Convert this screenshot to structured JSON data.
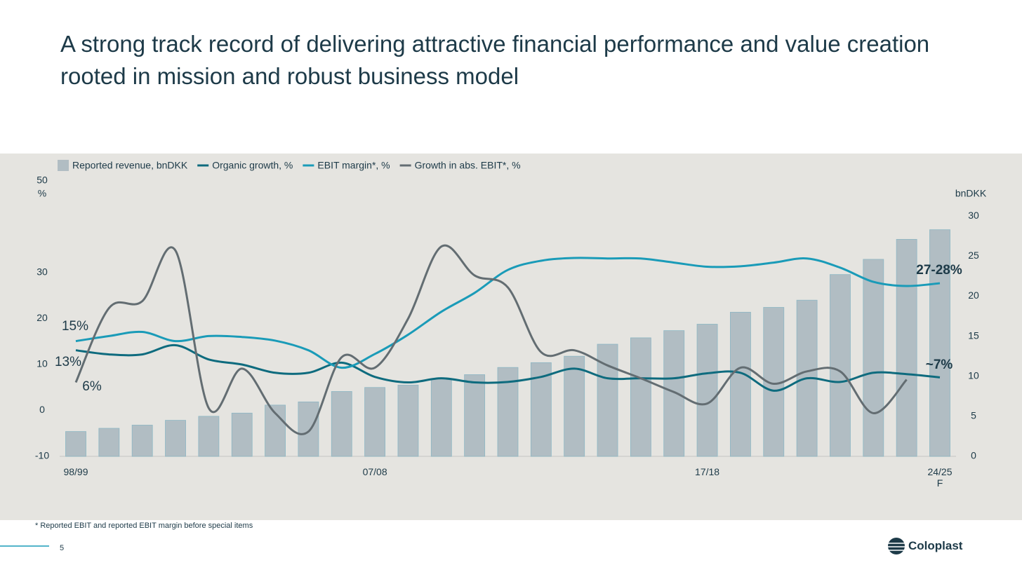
{
  "header": {
    "title": "A strong track record of delivering attractive financial performance and value creation rooted in mission and robust business model"
  },
  "chart_data": {
    "type": "combo",
    "categories": [
      "98/99",
      null,
      null,
      null,
      null,
      null,
      null,
      null,
      null,
      "07/08",
      null,
      null,
      null,
      null,
      null,
      null,
      null,
      null,
      null,
      "17/18",
      null,
      null,
      null,
      null,
      null,
      null,
      "24/25 F"
    ],
    "ylabel": "%",
    "y2label": "bnDKK",
    "ylim": [
      -10,
      50
    ],
    "yticks": [
      -10,
      0,
      10,
      20,
      30,
      50
    ],
    "y2lim": [
      0,
      34.4
    ],
    "y2ticks": [
      0,
      5,
      10,
      15,
      20,
      25,
      30
    ],
    "series": [
      {
        "name": "Reported revenue, bnDKK",
        "type": "bar",
        "axis": "y2",
        "color": "#b1bdc3",
        "values": [
          3.1,
          3.5,
          3.9,
          4.5,
          5.0,
          5.4,
          6.4,
          6.8,
          8.1,
          8.6,
          8.9,
          9.7,
          10.2,
          11.1,
          11.7,
          12.5,
          14.0,
          14.8,
          15.7,
          16.5,
          18.0,
          18.6,
          19.5,
          22.7,
          24.6,
          27.1,
          28.3
        ]
      },
      {
        "name": "Organic growth, %",
        "type": "line",
        "color": "#0e6b7e",
        "values": [
          13.1,
          12.2,
          12.2,
          14.2,
          11.1,
          10,
          8.2,
          8.2,
          10.4,
          7.3,
          6.1,
          7,
          6.1,
          6.2,
          7.3,
          9.1,
          7,
          7,
          7,
          8.1,
          8.2,
          4.3,
          7,
          6.2,
          8.2,
          7.9,
          7.2
        ]
      },
      {
        "name": "EBIT margin*, %",
        "type": "line",
        "color": "#1a9bb8",
        "values": [
          15.1,
          16.2,
          17.1,
          15.1,
          16.2,
          16,
          15.2,
          13.1,
          9.3,
          12.3,
          16.5,
          21.5,
          25.6,
          30.6,
          32.6,
          33.2,
          33.1,
          33.1,
          32.2,
          31.3,
          31.4,
          32.2,
          33.1,
          31.1,
          28,
          27.1,
          27.7
        ]
      },
      {
        "name": "Growth in abs. EBIT*, %",
        "type": "line",
        "color": "#636d72",
        "values": [
          6.1,
          22.3,
          23.8,
          34.8,
          0.5,
          9.1,
          -0.6,
          -4.6,
          11.6,
          9.3,
          20,
          35.7,
          29.4,
          26.8,
          12.7,
          13.1,
          9.8,
          7,
          4,
          1.5,
          9.3,
          5.8,
          8.5,
          8.5,
          -0.6,
          6.7,
          null
        ]
      }
    ],
    "annotations": [
      "15%",
      "13%",
      "6%",
      "27-28%",
      "~7%"
    ]
  },
  "footnote": "* Reported EBIT and reported EBIT margin before special items",
  "page_number": "5",
  "logo": "Coloplast"
}
